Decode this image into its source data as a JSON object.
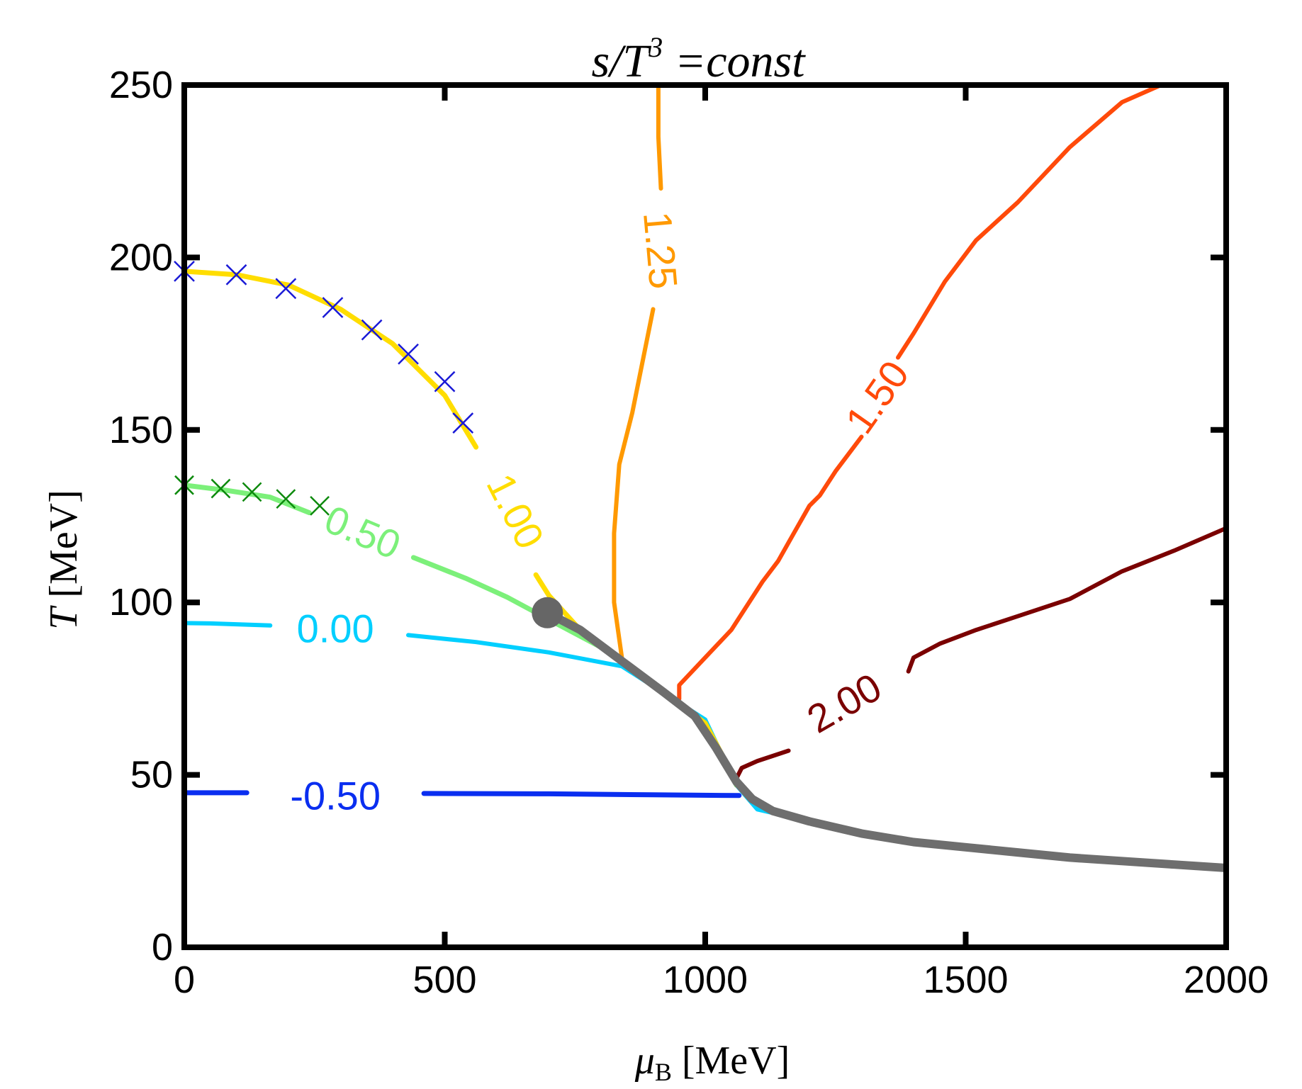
{
  "chart_data": {
    "type": "line",
    "title_main": "s/T",
    "title_sup": "3",
    "title_rest": " =const",
    "xlabel_sym": "μ",
    "xlabel_sub": "B",
    "xlabel_unit": " [MeV]",
    "ylabel_sym": "T",
    "ylabel_unit": " [MeV]",
    "xlim": [
      0,
      2000
    ],
    "ylim": [
      0,
      250
    ],
    "x_ticks": [
      0,
      500,
      1000,
      1500,
      2000
    ],
    "y_ticks": [
      0,
      50,
      100,
      150,
      200,
      250
    ],
    "x_tick_labels": [
      "0",
      "500",
      "1000",
      "1500",
      "2000"
    ],
    "y_tick_labels": [
      "0",
      "50",
      "100",
      "150",
      "200",
      "250"
    ],
    "series": [
      {
        "name": "-0.50",
        "color": "#0a2ef0",
        "width": 7,
        "points": [
          [
            0,
            44.8
          ],
          [
            120,
            44.8
          ]
        ],
        "segments": [
          [
            [
              0,
              44.8
            ],
            [
              120,
              44.8
            ]
          ],
          [
            [
              460,
              44.6
            ],
            [
              700,
              44.5
            ],
            [
              900,
              44.2
            ],
            [
              1065,
              44
            ]
          ]
        ],
        "label": {
          "text": "-0.50",
          "x": 290,
          "y": 43,
          "angle": 0
        }
      },
      {
        "name": "0.00",
        "color": "#00cfff",
        "width": 6,
        "segments": [
          [
            [
              0,
              94
            ],
            [
              50,
              93.9
            ],
            [
              165,
              93.3
            ]
          ],
          [
            [
              430,
              90.5
            ],
            [
              560,
              88.5
            ],
            [
              700,
              85.5
            ],
            [
              840,
              81.5
            ],
            [
              1000,
              66
            ],
            [
              1060,
              47
            ],
            [
              1100,
              40
            ],
            [
              1300,
              33
            ],
            [
              1500,
              28.8
            ],
            [
              1700,
              26.5
            ],
            [
              2000,
              22.5
            ]
          ]
        ],
        "label": {
          "text": "0.00",
          "x": 290,
          "y": 91.5,
          "angle": 0
        }
      },
      {
        "name": "0.50",
        "color": "#7cf07a",
        "width": 7,
        "segments": [
          [
            [
              0,
              134
            ],
            [
              80,
              132.5
            ],
            [
              165,
              130.5
            ],
            [
              240,
              126
            ]
          ],
          [
            [
              440,
              113
            ],
            [
              540,
              107
            ],
            [
              620,
              101.5
            ],
            [
              700,
              95
            ],
            [
              800,
              87
            ],
            [
              900,
              76
            ],
            [
              1000,
              64
            ],
            [
              1060,
              47
            ]
          ]
        ],
        "label": {
          "text": "0.50",
          "x": 340,
          "y": 119.5,
          "angle": 23
        }
      },
      {
        "name": "1.00",
        "color": "#ffdd00",
        "width": 7,
        "segments": [
          [
            [
              0,
              196
            ],
            [
              100,
              195
            ],
            [
              200,
              192
            ],
            [
              300,
              185
            ],
            [
              400,
              175
            ],
            [
              500,
              160
            ],
            [
              560,
              145
            ]
          ],
          [
            [
              675,
              108
            ],
            [
              700,
              102
            ],
            [
              760,
              92
            ],
            [
              850,
              82
            ],
            [
              920,
              74
            ],
            [
              1000,
              65
            ],
            [
              1060,
              48
            ]
          ]
        ],
        "label": {
          "text": "1.00",
          "x": 630,
          "y": 126,
          "angle": 63
        }
      },
      {
        "name": "1.25",
        "color": "#ff9900",
        "width": 6,
        "segments": [
          [
            [
              910,
              250
            ],
            [
              910,
              235
            ],
            [
              915,
              220
            ]
          ],
          [
            [
              900,
              185
            ],
            [
              880,
              170
            ],
            [
              860,
              155
            ],
            [
              835,
              140
            ],
            [
              825,
              120
            ],
            [
              825,
              100
            ],
            [
              840,
              84
            ]
          ]
        ],
        "label": {
          "text": "1.25",
          "x": 908,
          "y": 202,
          "angle": 85
        }
      },
      {
        "name": "1.50",
        "color": "#ff4a0a",
        "width": 6,
        "segments": [
          [
            [
              1875,
              250
            ],
            [
              1800,
              245
            ],
            [
              1700,
              232
            ],
            [
              1600,
              216
            ],
            [
              1520,
              205
            ],
            [
              1460,
              193
            ],
            [
              1400,
              178
            ],
            [
              1370,
              171
            ]
          ],
          [
            [
              1300,
              148
            ],
            [
              1250,
              138
            ],
            [
              1220,
              131
            ],
            [
              1200,
              128
            ],
            [
              1170,
              120
            ],
            [
              1140,
              112
            ],
            [
              1110,
              106
            ],
            [
              1050,
              92
            ],
            [
              1000,
              84
            ],
            [
              950,
              76
            ],
            [
              950,
              72
            ]
          ]
        ],
        "label": {
          "text": "1.50",
          "x": 1335,
          "y": 159,
          "angle": -55
        }
      },
      {
        "name": "2.00",
        "color": "#7a0000",
        "width": 6,
        "segments": [
          [
            [
              2000,
              121.5
            ],
            [
              1900,
              115
            ],
            [
              1800,
              109
            ],
            [
              1700,
              101
            ],
            [
              1600,
              96
            ],
            [
              1520,
              92
            ],
            [
              1450,
              88
            ],
            [
              1400,
              84
            ],
            [
              1390,
              80
            ]
          ],
          [
            [
              1160,
              57
            ],
            [
              1100,
              54
            ],
            [
              1070,
              52
            ],
            [
              1060,
              49
            ]
          ]
        ],
        "label": {
          "text": "2.00",
          "x": 1270,
          "y": 70,
          "angle": -30
        }
      },
      {
        "name": "first-order-transition",
        "color": "#6e6e6e",
        "width": 12,
        "segments": [
          [
            [
              697,
              97
            ],
            [
              760,
              92
            ],
            [
              840,
              83
            ],
            [
              920,
              74
            ],
            [
              980,
              67
            ],
            [
              1020,
              58
            ],
            [
              1060,
              48
            ],
            [
              1090,
              43
            ],
            [
              1130,
              39.5
            ],
            [
              1200,
              36.5
            ],
            [
              1300,
              33
            ],
            [
              1400,
              30.5
            ],
            [
              1500,
              29
            ],
            [
              1600,
              27.5
            ],
            [
              1700,
              26
            ],
            [
              1800,
              25
            ],
            [
              1900,
              24
            ],
            [
              2000,
              23
            ]
          ]
        ],
        "label": null
      }
    ],
    "markers": [
      {
        "name": "blue-x",
        "color": "#1a1ad6",
        "size": 14,
        "points": [
          [
            0,
            196
          ],
          [
            100,
            195
          ],
          [
            195,
            191
          ],
          [
            285,
            185.5
          ],
          [
            360,
            179
          ],
          [
            430,
            172
          ],
          [
            500,
            164
          ],
          [
            535,
            152
          ]
        ]
      },
      {
        "name": "green-x",
        "color": "#0d8a0d",
        "size": 13,
        "points": [
          [
            0,
            134
          ],
          [
            70,
            133
          ],
          [
            130,
            132
          ],
          [
            195,
            130
          ],
          [
            260,
            128
          ]
        ]
      }
    ],
    "critical_point": {
      "x": 697,
      "y": 97,
      "color": "#666666"
    }
  }
}
